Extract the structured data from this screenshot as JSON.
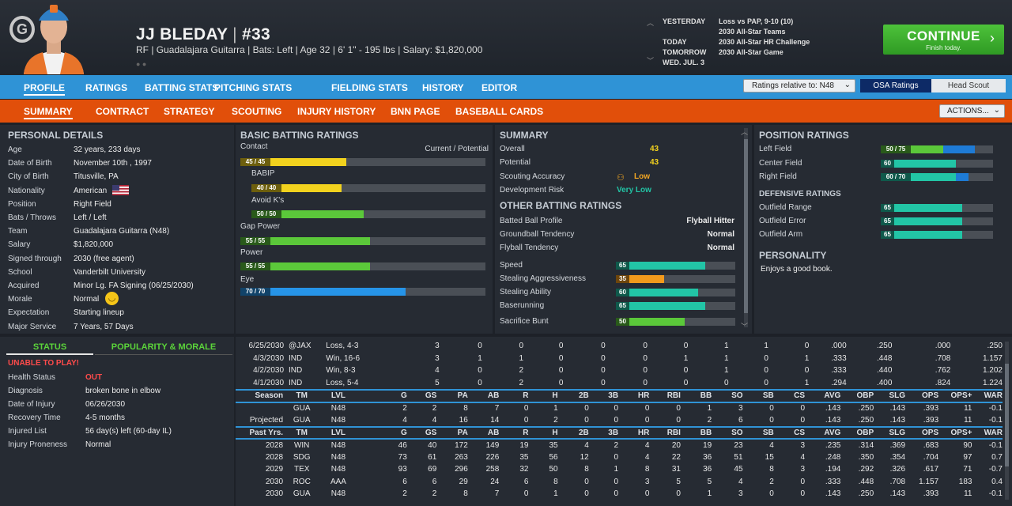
{
  "header": {
    "logo": "G",
    "name": "JJ BLEDAY",
    "sep": "|",
    "number": "#33",
    "info": "RF | Guadalajara Guitarra | Bats: Left | Age 32 | 6' 1\" - 195 lbs | Salary: $1,820,000",
    "dots": "● ●"
  },
  "schedule": [
    {
      "day": "YESTERDAY",
      "event": "Loss vs PAP, 9-10 (10)"
    },
    {
      "day": "",
      "event": "2030 All-Star Teams"
    },
    {
      "day": "TODAY",
      "event": "2030 All-Star HR Challenge"
    },
    {
      "day": "TOMORROW",
      "event": "2030 All-Star Game"
    },
    {
      "day": "WED. JUL. 3",
      "event": ""
    }
  ],
  "continue": {
    "label": "CONTINUE",
    "sub": "Finish today."
  },
  "nav1": [
    "PROFILE",
    "RATINGS",
    "BATTING STATS",
    "PITCHING STATS",
    "FIELDING STATS",
    "HISTORY",
    "EDITOR"
  ],
  "ratings_select": "Ratings relative to: N48",
  "toggle": {
    "a": "OSA Ratings",
    "b": "Head Scout"
  },
  "nav2": [
    "SUMMARY",
    "CONTRACT",
    "STRATEGY",
    "SCOUTING",
    "INJURY HISTORY",
    "BNN PAGE",
    "BASEBALL CARDS"
  ],
  "actions": "ACTIONS...",
  "personal": {
    "title": "PERSONAL DETAILS",
    "rows": [
      [
        "Age",
        "32 years, 233 days"
      ],
      [
        "Date of Birth",
        "November 10th , 1997"
      ],
      [
        "City of Birth",
        "Titusville, PA"
      ],
      [
        "Nationality",
        "American"
      ],
      [
        "Position",
        "Right Field"
      ],
      [
        "Bats / Throws",
        "Left / Left"
      ],
      [
        "Team",
        "Guadalajara Guitarra (N48)"
      ],
      [
        "Salary",
        "$1,820,000"
      ],
      [
        "Signed through",
        "2030 (free agent)"
      ],
      [
        "School",
        "Vanderbilt University"
      ],
      [
        "Acquired",
        "Minor Lg. FA Signing (06/25/2030)"
      ],
      [
        "Morale",
        "Normal"
      ],
      [
        "Expectation",
        "Starting lineup"
      ],
      [
        "Major Service",
        "7 Years, 57 Days"
      ]
    ]
  },
  "status": {
    "tab_a": "STATUS",
    "tab_b": "POPULARITY & MORALE",
    "alert": "UNABLE TO PLAY!",
    "rows": [
      [
        "Health Status",
        "OUT"
      ],
      [
        "Diagnosis",
        "broken bone in elbow"
      ],
      [
        "Date of Injury",
        "06/26/2030"
      ],
      [
        "Recovery Time",
        "4-5 months"
      ],
      [
        "Injured List",
        "56 day(s) left (60-day IL)"
      ],
      [
        "Injury Proneness",
        "Normal"
      ]
    ]
  },
  "batting": {
    "title": "BASIC BATTING RATINGS",
    "legend": "Current / Potential",
    "items": [
      {
        "name": "Contact",
        "text": "45 / 45",
        "value": 45,
        "color": "#f2d21e"
      },
      {
        "name": "BABIP",
        "text": "40 / 40",
        "value": 40,
        "color": "#f2d21e"
      },
      {
        "name": "Avoid K's",
        "text": "50 / 50",
        "value": 50,
        "color": "#5bc83a"
      },
      {
        "name": "Gap Power",
        "text": "55 / 55",
        "value": 55,
        "color": "#5bc83a"
      },
      {
        "name": "Power",
        "text": "55 / 55",
        "value": 55,
        "color": "#5bc83a"
      },
      {
        "name": "Eye",
        "text": "70 / 70",
        "value": 70,
        "color": "#2694e8"
      }
    ]
  },
  "summary": {
    "title": "SUMMARY",
    "rows": [
      [
        "Overall",
        "43"
      ],
      [
        "Potential",
        "43"
      ],
      [
        "Scouting Accuracy",
        "Low"
      ],
      [
        "Development Risk",
        "Very Low"
      ]
    ],
    "other_title": "OTHER BATTING RATINGS",
    "other": [
      [
        "Batted Ball Profile",
        "Flyball Hitter"
      ],
      [
        "Groundball Tendency",
        "Normal"
      ],
      [
        "Flyball Tendency",
        "Normal"
      ]
    ],
    "bars": [
      {
        "name": "Speed",
        "value": 65,
        "color": "#22c5a6"
      },
      {
        "name": "Stealing Aggressiveness",
        "value": 35,
        "color": "#f29a1c"
      },
      {
        "name": "Stealing Ability",
        "value": 60,
        "color": "#22c5a6"
      },
      {
        "name": "Baserunning",
        "value": 65,
        "color": "#22c5a6"
      },
      {
        "name": "Sacrifice Bunt",
        "value": 50,
        "color": "#5bc83a"
      }
    ]
  },
  "position": {
    "title": "POSITION RATINGS",
    "items": [
      {
        "name": "Left Field",
        "text": "50 / 75",
        "cur": 50,
        "pot": 75,
        "color": "#5bc83a"
      },
      {
        "name": "Center Field",
        "text": "60",
        "cur": 60,
        "pot": 60,
        "color": "#22c5a6"
      },
      {
        "name": "Right Field",
        "text": "60 / 70",
        "cur": 60,
        "pot": 70,
        "color": "#22c5a6"
      }
    ],
    "def_title": "DEFENSIVE RATINGS",
    "def": [
      {
        "name": "Outfield Range",
        "text": "65",
        "cur": 65
      },
      {
        "name": "Outfield Error",
        "text": "65",
        "cur": 65
      },
      {
        "name": "Outfield Arm",
        "text": "65",
        "cur": 65
      }
    ],
    "pers_title": "PERSONALITY",
    "pers": "Enjoys a good book."
  },
  "stats": {
    "recent": [
      [
        "6/25/2030",
        "@JAX",
        "Loss, 4-3",
        "3",
        "0",
        "0",
        "0",
        "0",
        "0",
        "0",
        "1",
        "1",
        "0",
        ".000",
        ".250",
        ".000",
        ".250"
      ],
      [
        "4/3/2030",
        "IND",
        "Win, 16-6",
        "3",
        "1",
        "1",
        "0",
        "0",
        "0",
        "1",
        "1",
        "0",
        "1",
        ".333",
        ".448",
        ".708",
        "1.157"
      ],
      [
        "4/2/2030",
        "IND",
        "Win, 8-3",
        "4",
        "0",
        "2",
        "0",
        "0",
        "0",
        "0",
        "1",
        "0",
        "0",
        ".333",
        ".440",
        ".762",
        "1.202"
      ],
      [
        "4/1/2030",
        "IND",
        "Loss, 5-4",
        "5",
        "0",
        "2",
        "0",
        "0",
        "0",
        "0",
        "0",
        "0",
        "1",
        ".294",
        ".400",
        ".824",
        "1.224"
      ]
    ],
    "season_hdr": [
      "Season",
      "TM",
      "LVL",
      "G",
      "GS",
      "PA",
      "AB",
      "R",
      "H",
      "2B",
      "3B",
      "HR",
      "RBI",
      "BB",
      "SO",
      "SB",
      "CS",
      "AVG",
      "OBP",
      "SLG",
      "OPS",
      "OPS+",
      "WAR"
    ],
    "season": [
      [
        "",
        "GUA",
        "N48",
        "2",
        "2",
        "8",
        "7",
        "0",
        "1",
        "0",
        "0",
        "0",
        "0",
        "1",
        "3",
        "0",
        "0",
        ".143",
        ".250",
        ".143",
        ".393",
        "11",
        "-0.1"
      ],
      [
        "Projected",
        "GUA",
        "N48",
        "4",
        "4",
        "16",
        "14",
        "0",
        "2",
        "0",
        "0",
        "0",
        "0",
        "2",
        "6",
        "0",
        "0",
        ".143",
        ".250",
        ".143",
        ".393",
        "11",
        "-0.1"
      ]
    ],
    "past_hdr": [
      "Past Yrs.",
      "TM",
      "LVL",
      "G",
      "GS",
      "PA",
      "AB",
      "R",
      "H",
      "2B",
      "3B",
      "HR",
      "RBI",
      "BB",
      "SO",
      "SB",
      "CS",
      "AVG",
      "OBP",
      "SLG",
      "OPS",
      "OPS+",
      "WAR"
    ],
    "past": [
      [
        "2028",
        "WIN",
        "N48",
        "46",
        "40",
        "172",
        "149",
        "19",
        "35",
        "4",
        "2",
        "4",
        "20",
        "19",
        "23",
        "4",
        "3",
        ".235",
        ".314",
        ".369",
        ".683",
        "90",
        "-0.1"
      ],
      [
        "2028",
        "SDG",
        "N48",
        "73",
        "61",
        "263",
        "226",
        "35",
        "56",
        "12",
        "0",
        "4",
        "22",
        "36",
        "51",
        "15",
        "4",
        ".248",
        ".350",
        ".354",
        ".704",
        "97",
        "0.7"
      ],
      [
        "2029",
        "TEX",
        "N48",
        "93",
        "69",
        "296",
        "258",
        "32",
        "50",
        "8",
        "1",
        "8",
        "31",
        "36",
        "45",
        "8",
        "3",
        ".194",
        ".292",
        ".326",
        ".617",
        "71",
        "-0.7"
      ],
      [
        "2030",
        "ROC",
        "AAA",
        "6",
        "6",
        "29",
        "24",
        "6",
        "8",
        "0",
        "0",
        "3",
        "5",
        "5",
        "4",
        "2",
        "0",
        ".333",
        ".448",
        ".708",
        "1.157",
        "183",
        "0.4"
      ],
      [
        "2030",
        "GUA",
        "N48",
        "2",
        "2",
        "8",
        "7",
        "0",
        "1",
        "0",
        "0",
        "0",
        "0",
        "1",
        "3",
        "0",
        "0",
        ".143",
        ".250",
        ".143",
        ".393",
        "11",
        "-0.1"
      ]
    ]
  }
}
